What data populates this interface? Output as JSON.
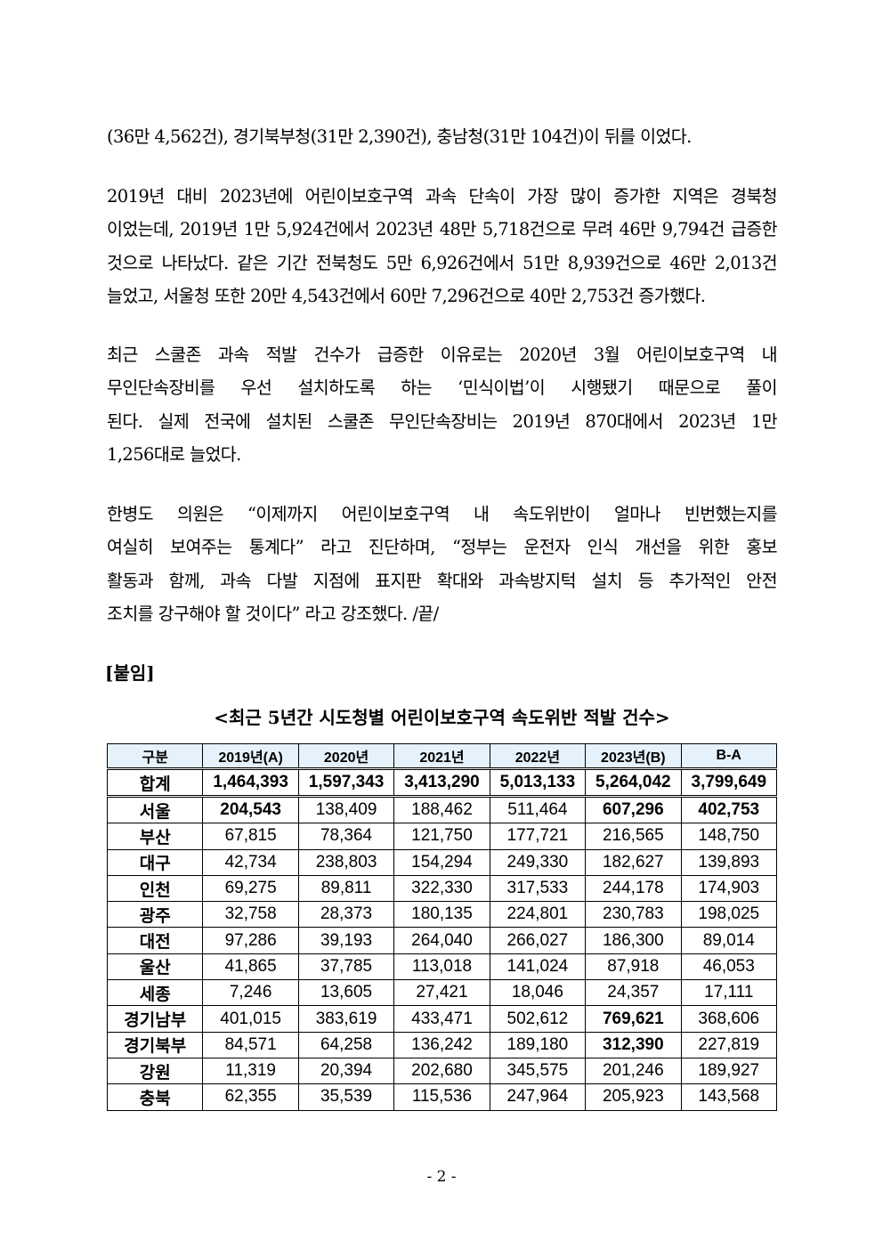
{
  "paragraphs": [
    [
      "(36만 4,562건), 경기북부청(31만 2,390건), 충남청(31만 104건)이 뒤를 이었다."
    ],
    [
      "2019년 대비 2023년에 어린이보호구역 과속 단속이 가장 많이 증가한 지역은 경북청",
      "이었는데, 2019년 1만 5,924건에서 2023년 48만 5,718건으로 무려 46만 9,794건 급증한",
      "것으로 나타났다. 같은 기간 전북청도 5만 6,926건에서 51만 8,939건으로 46만 2,013건",
      "늘었고, 서울청 또한 20만 4,543건에서 60만 7,296건으로 40만 2,753건 증가했다."
    ],
    [
      "최근 스쿨존 과속 적발 건수가 급증한 이유로는 2020년 3월 어린이보호구역 내",
      "무인단속장비를 우선 설치하도록 하는 ‘민식이법’이 시행됐기 때문으로 풀이",
      "된다. 실제 전국에 설치된 스쿨존 무인단속장비는 2019년 870대에서 2023년 1만",
      "1,256대로 늘었다."
    ],
    [
      "한병도 의원은 “이제까지 어린이보호구역 내 속도위반이 얼마나 빈번했는지를",
      "여실히 보여주는 통계다” 라고 진단하며, “정부는 운전자 인식 개선을 위한 홍보",
      "활동과 함께, 과속 다발 지점에 표지판 확대와 과속방지턱 설치 등 추가적인 안전",
      "조치를 강구해야 할 것이다” 라고 강조했다. /끝/"
    ]
  ],
  "attachment_label": "[붙임]",
  "table": {
    "title": "<최근 5년간 시도청별 어린이보호구역 속도위반 적발 건수>",
    "header_bg": "#e6f2fb",
    "columns": [
      "구분",
      "2019년(A)",
      "2020년",
      "2021년",
      "2022년",
      "2023년(B)",
      "B-A"
    ],
    "total": [
      "합계",
      "1,464,393",
      "1,597,343",
      "3,413,290",
      "5,013,133",
      "5,264,042",
      "3,799,649"
    ],
    "rows": [
      {
        "cells": [
          "서울",
          "204,543",
          "138,409",
          "188,462",
          "511,464",
          "607,296",
          "402,753"
        ],
        "bold": [
          1,
          5,
          6
        ]
      },
      {
        "cells": [
          "부산",
          "67,815",
          "78,364",
          "121,750",
          "177,721",
          "216,565",
          "148,750"
        ],
        "bold": []
      },
      {
        "cells": [
          "대구",
          "42,734",
          "238,803",
          "154,294",
          "249,330",
          "182,627",
          "139,893"
        ],
        "bold": []
      },
      {
        "cells": [
          "인천",
          "69,275",
          "89,811",
          "322,330",
          "317,533",
          "244,178",
          "174,903"
        ],
        "bold": []
      },
      {
        "cells": [
          "광주",
          "32,758",
          "28,373",
          "180,135",
          "224,801",
          "230,783",
          "198,025"
        ],
        "bold": []
      },
      {
        "cells": [
          "대전",
          "97,286",
          "39,193",
          "264,040",
          "266,027",
          "186,300",
          "89,014"
        ],
        "bold": []
      },
      {
        "cells": [
          "울산",
          "41,865",
          "37,785",
          "113,018",
          "141,024",
          "87,918",
          "46,053"
        ],
        "bold": []
      },
      {
        "cells": [
          "세종",
          "7,246",
          "13,605",
          "27,421",
          "18,046",
          "24,357",
          "17,111"
        ],
        "bold": []
      },
      {
        "cells": [
          "경기남부",
          "401,015",
          "383,619",
          "433,471",
          "502,612",
          "769,621",
          "368,606"
        ],
        "bold": [
          5
        ]
      },
      {
        "cells": [
          "경기북부",
          "84,571",
          "64,258",
          "136,242",
          "189,180",
          "312,390",
          "227,819"
        ],
        "bold": [
          5
        ]
      },
      {
        "cells": [
          "강원",
          "11,319",
          "20,394",
          "202,680",
          "345,575",
          "201,246",
          "189,927"
        ],
        "bold": []
      },
      {
        "cells": [
          "충북",
          "62,355",
          "35,539",
          "115,536",
          "247,964",
          "205,923",
          "143,568"
        ],
        "bold": []
      }
    ]
  },
  "page_number": "- 2 -"
}
